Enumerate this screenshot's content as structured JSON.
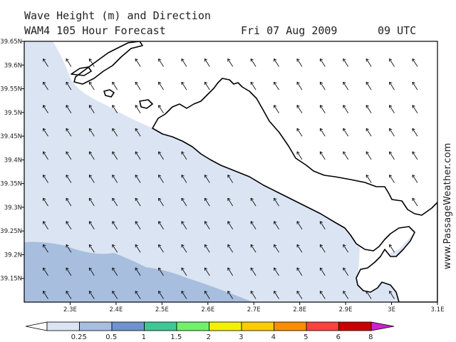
{
  "header": {
    "line1": "Wave Height (m) and Direction",
    "model": "WAM4 105 Hour Forecast",
    "date": "Fri 07 Aug 2009",
    "time": "09 UTC"
  },
  "watermark": "www.PassageWeather.com",
  "map": {
    "lat_range": [
      39.1,
      39.65
    ],
    "lon_range": [
      2.2,
      3.1
    ],
    "lat_ticks": [
      "39.65N",
      "39.6N",
      "39.55N",
      "39.5N",
      "39.45N",
      "39.4N",
      "39.35N",
      "39.3N",
      "39.25N",
      "39.2N",
      "39.15N"
    ],
    "lon_ticks": [
      "2.3E",
      "2.4E",
      "2.5E",
      "2.6E",
      "2.7E",
      "2.8E",
      "2.9E",
      "3E",
      "3.1E"
    ],
    "arrow_direction": "north-west"
  },
  "legend": {
    "labels": [
      "0.25",
      "0.5",
      "1",
      "1.5",
      "2",
      "3",
      "4",
      "5",
      "6",
      "8"
    ],
    "colors": [
      "#ffffff",
      "#dbe4f2",
      "#a7bedf",
      "#6f93cd",
      "#3cc895",
      "#6ef26a",
      "#f2f200",
      "#ffcc00",
      "#ff8c00",
      "#ff4040",
      "#cc0000",
      "#cc22cc"
    ]
  }
}
